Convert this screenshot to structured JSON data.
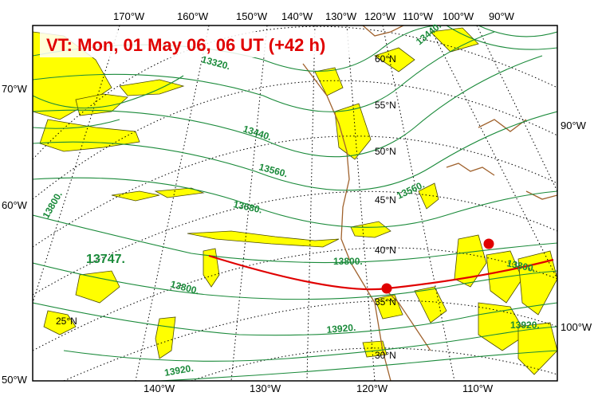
{
  "title": "VT:  Mon, 01 May 06, 06 UT (+42 h)",
  "colors": {
    "title": "#e00000",
    "contour": "#1a8a3a",
    "shading": "#ffff00",
    "coast": "#a0622d",
    "trajectory": "#e00000",
    "graticule": "#000000"
  },
  "top_ticks": [
    "170°W",
    "160°W",
    "150°W",
    "140°W",
    "130°W",
    "120°W",
    "110°W",
    "100°W",
    "90°W"
  ],
  "bottom_ticks": [
    "140°W",
    "130°W",
    "120°W",
    "110°W"
  ],
  "left_ticks": [
    "70°W",
    "60°W",
    "50°W"
  ],
  "right_ticks": [
    "90°W",
    "100°W"
  ],
  "lat_labels": [
    "60°N",
    "55°N",
    "50°N",
    "45°N",
    "40°N",
    "35°N",
    "30°N",
    "25°N"
  ],
  "contour_labels": [
    "13320.",
    "13440.",
    "13560.",
    "13680.",
    "13800.",
    "13920.",
    "13440.",
    "13560.",
    "13800.",
    "13800.",
    "13920.",
    "13920.",
    "13800."
  ],
  "extreme_label": "13747."
}
